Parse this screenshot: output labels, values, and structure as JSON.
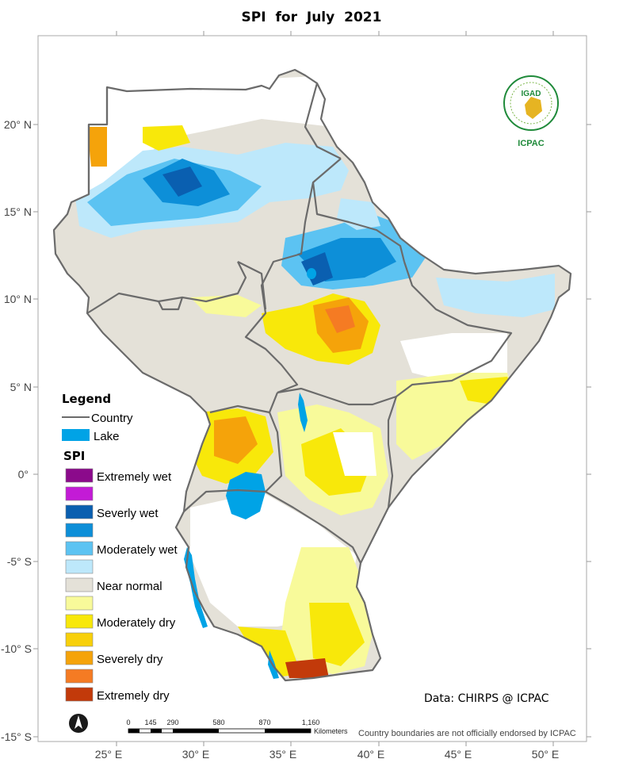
{
  "title": "SPI  for July  2021",
  "axes": {
    "lat_labels": [
      "20° N",
      "15° N",
      "10° N",
      "5° N",
      "0°",
      "-5° S",
      "-10° S",
      "-15° S"
    ],
    "lon_labels": [
      "25° E",
      "30° E",
      "35° E",
      "40° E",
      "45° E",
      "50° E"
    ]
  },
  "legend": {
    "heading": "Legend",
    "country_label": "Country",
    "lake_label": "Lake",
    "spi_heading": "SPI",
    "classes": [
      {
        "label": "Extremely wet",
        "color": "#8B0A8B"
      },
      {
        "label": "",
        "color": "#C31BD6"
      },
      {
        "label": "Severly wet",
        "color": "#0A5FB0"
      },
      {
        "label": "",
        "color": "#0D8FD8"
      },
      {
        "label": "Moderately wet",
        "color": "#5CC3F2"
      },
      {
        "label": "",
        "color": "#BDE8FB"
      },
      {
        "label": "Near normal",
        "color": "#E4E1D8"
      },
      {
        "label": "",
        "color": "#F8FA9A"
      },
      {
        "label": "Moderately dry",
        "color": "#F8E80A"
      },
      {
        "label": "",
        "color": "#F8D00A"
      },
      {
        "label": "Severely dry",
        "color": "#F5A30A"
      },
      {
        "label": "",
        "color": "#F57B23"
      },
      {
        "label": "Extremely dry",
        "color": "#C23A0A"
      }
    ],
    "lake_color": "#00A3E6"
  },
  "credit": "Data: CHIRPS @ ICPAC",
  "scale_bar": {
    "ticks": [
      "0",
      "145",
      "290",
      "580",
      "870",
      "1,160"
    ],
    "unit": "Kilometers"
  },
  "disclaimer": "Country boundaries are not officially endorsed by ICPAC",
  "logo": {
    "acronym": "IGAD",
    "org": "ICPAC"
  }
}
